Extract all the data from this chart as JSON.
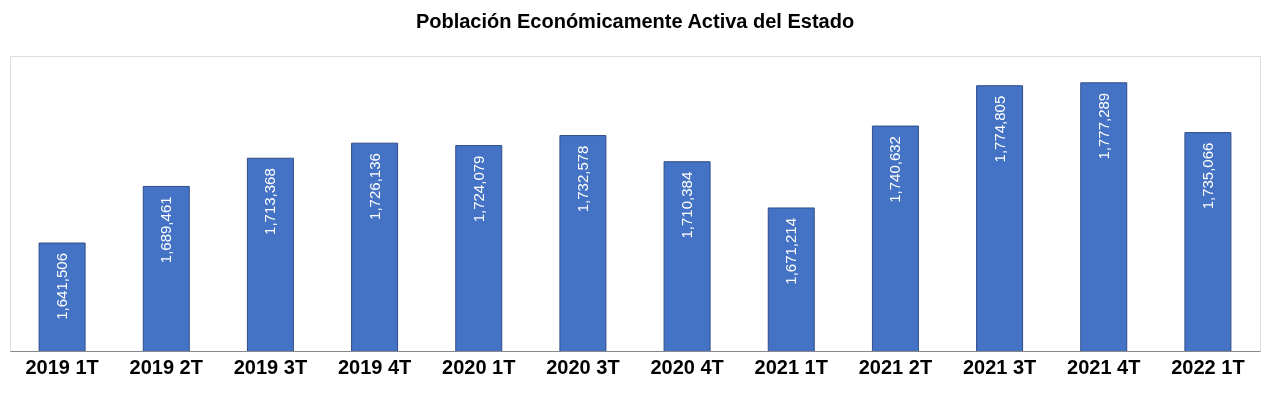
{
  "chart_data": {
    "type": "bar",
    "title": "Población Económicamente Activa del Estado",
    "categories": [
      "2019 1T",
      "2019 2T",
      "2019 3T",
      "2019 4T",
      "2020 1T",
      "2020 3T",
      "2020 4T",
      "2021 1T",
      "2021 2T",
      "2021 3T",
      "2021 4T",
      "2022 1T"
    ],
    "values": [
      1641506,
      1689461,
      1713368,
      1726136,
      1724079,
      1732578,
      1710384,
      1671214,
      1740632,
      1774805,
      1777289,
      1735066
    ],
    "color": "#4472c4",
    "value_labels": [
      "1,641,506",
      "1,689,461",
      "1,713,368",
      "1,726,136",
      "1,724,079",
      "1,732,578",
      "1,710,384",
      "1,671,214",
      "1,740,632",
      "1,774,805",
      "1,777,289",
      "1,735,066"
    ],
    "ylim": [
      1550000,
      1800000
    ],
    "grid": false,
    "tick_labels": "x"
  }
}
